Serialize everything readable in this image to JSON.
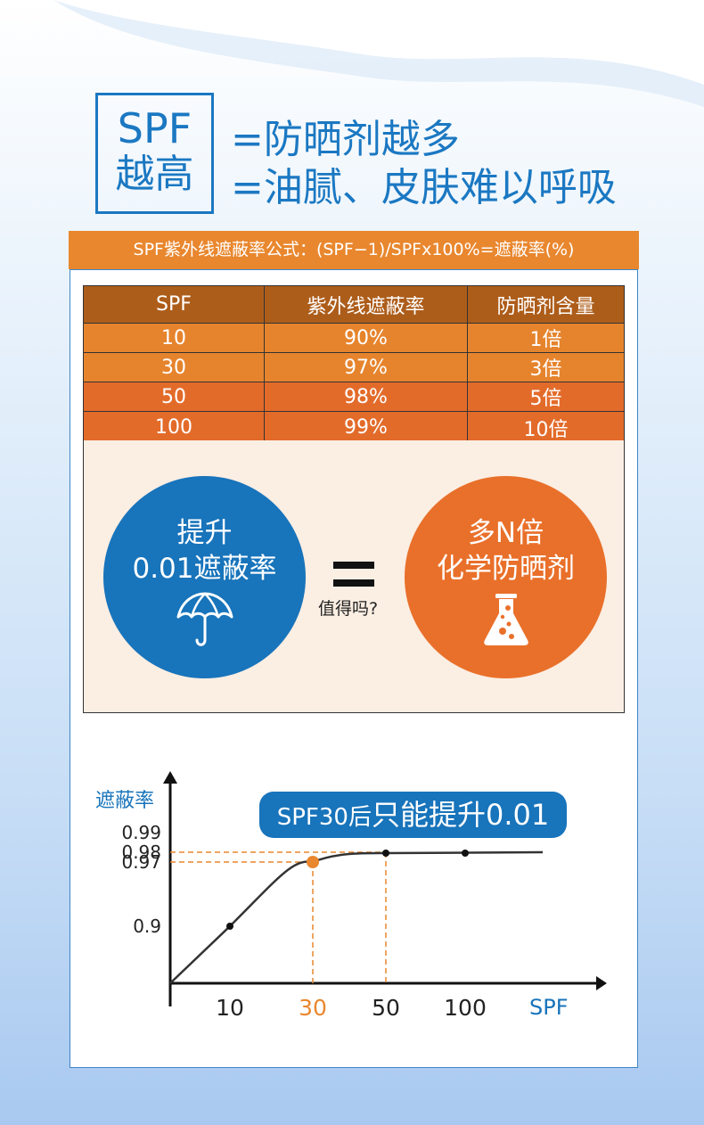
{
  "headline": {
    "box_line1": "SPF",
    "box_line2": "越高",
    "line1": "=防晒剂越多",
    "line2": "=油腻、皮肤难以呼吸"
  },
  "formula": "SPF紫外线遮蔽率公式：(SPF−1)/SPFx100%=遮蔽率(%)",
  "table": {
    "headers": [
      "SPF",
      "紫外线遮蔽率",
      "防晒剂含量"
    ],
    "rows": [
      [
        "10",
        "90%",
        "1倍"
      ],
      [
        "30",
        "97%",
        "3倍"
      ],
      [
        "50",
        "98%",
        "5倍"
      ],
      [
        "100",
        "99%",
        "10倍"
      ]
    ]
  },
  "comparison": {
    "left_line1": "提升",
    "left_line2": "0.01遮蔽率",
    "left_icon": "umbrella-icon",
    "equals_sign": "=",
    "question": "值得吗?",
    "right_line1": "多N倍",
    "right_line2": "化学防晒剂",
    "right_icon": "flask-icon"
  },
  "chart_data": {
    "type": "line",
    "ylabel": "遮蔽率",
    "xlabel": "SPF",
    "x_ticks": [
      "10",
      "30",
      "50",
      "100"
    ],
    "y_ticks": [
      "0.99",
      "0.98",
      "0.97",
      "0.9"
    ],
    "points": [
      {
        "x": "10",
        "y": 0.9
      },
      {
        "x": "30",
        "y": 0.97
      },
      {
        "x": "50",
        "y": 0.98
      },
      {
        "x": "100",
        "y": 0.99
      }
    ],
    "highlight_x": "30",
    "annotation": {
      "prefix": "SPF30后",
      "text": "只能提升0.01"
    },
    "colors": {
      "axis": "#111111",
      "highlight": "#e9872e",
      "label": "#1874bb"
    }
  }
}
